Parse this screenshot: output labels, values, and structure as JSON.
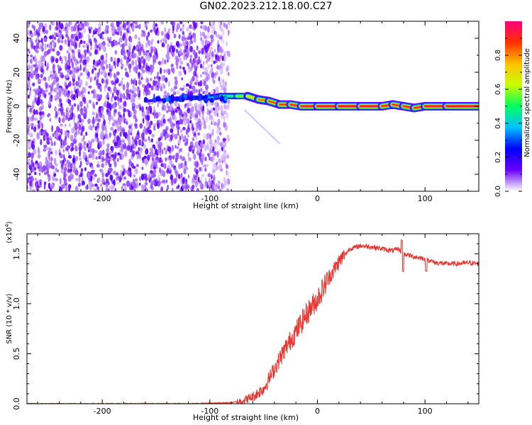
{
  "figure": {
    "title": "GN02.2023.212.18.00.C27"
  },
  "chart_data": [
    {
      "type": "heatmap",
      "title": "",
      "xlabel": "Height of straight line (km)",
      "ylabel": "Frequency (Hz)",
      "xlim": [
        -270,
        150
      ],
      "ylim": [
        -50,
        50
      ],
      "x_ticks": [
        -200,
        -100,
        0,
        100
      ],
      "x_tick_labels": [
        "-200",
        "-100",
        "0",
        "100"
      ],
      "y_ticks": [
        -40,
        -20,
        0,
        20,
        40
      ],
      "y_tick_labels": [
        "-40",
        "-20",
        "0",
        "20",
        "40"
      ],
      "grid": false,
      "colorbar": {
        "label": "Normalized spectral amplitude",
        "range": [
          0,
          1
        ],
        "ticks": [
          0.0,
          0.2,
          0.4,
          0.6,
          0.8
        ],
        "tick_labels": [
          "0.0",
          "0.2",
          "0.4",
          "0.6",
          "0.8"
        ],
        "colormap": [
          "#ffffff",
          "#6a00ff",
          "#0000ff",
          "#00c0ff",
          "#00ff60",
          "#c8ff00",
          "#ffc000",
          "#ff3000",
          "#ff0080"
        ]
      },
      "noise_region_x": [
        -270,
        -88
      ],
      "ridge": {
        "x": [
          -160,
          -140,
          -120,
          -100,
          -90,
          -75,
          -65,
          -55,
          -45,
          -35,
          -25,
          -15,
          0,
          20,
          40,
          60,
          70,
          80,
          90,
          100,
          120,
          150
        ],
        "freq": [
          3,
          4,
          5,
          5,
          6,
          6,
          6,
          4,
          3,
          1,
          1,
          0,
          0,
          0,
          0,
          0,
          1,
          0,
          -1,
          0,
          0,
          0
        ],
        "amplitude": [
          0.12,
          0.18,
          0.2,
          0.3,
          0.45,
          0.55,
          0.65,
          0.8,
          0.85,
          0.9,
          0.92,
          0.95,
          0.97,
          0.98,
          0.98,
          0.97,
          0.9,
          0.95,
          0.9,
          0.95,
          0.97,
          0.97
        ]
      }
    },
    {
      "type": "line",
      "title": "",
      "xlabel": "Height of straight line (km)",
      "ylabel": "SNR (10 * v/v)",
      "y_multiplier": "(x10^4)",
      "xlim": [
        -270,
        150
      ],
      "ylim": [
        0,
        1.7
      ],
      "x_ticks": [
        -200,
        -100,
        0,
        100
      ],
      "x_tick_labels": [
        "-200",
        "-100",
        "0",
        "100"
      ],
      "y_ticks": [
        0.0,
        0.5,
        1.0,
        1.5
      ],
      "y_tick_labels": [
        "0.0",
        "0.5",
        "1.0",
        "1.5"
      ],
      "grid": false,
      "series": [
        {
          "color": "#e8322d",
          "x": [
            -270,
            -200,
            -120,
            -80,
            -70,
            -60,
            -50,
            -40,
            -30,
            -20,
            -10,
            0,
            10,
            20,
            30,
            40,
            50,
            60,
            70,
            75,
            80,
            90,
            100,
            110,
            120,
            130,
            140,
            150
          ],
          "y": [
            0.0,
            0.0,
            0.0,
            0.01,
            0.03,
            0.07,
            0.15,
            0.35,
            0.55,
            0.72,
            0.9,
            1.05,
            1.25,
            1.42,
            1.55,
            1.58,
            1.57,
            1.55,
            1.53,
            1.55,
            1.5,
            1.47,
            1.45,
            1.41,
            1.4,
            1.4,
            1.41,
            1.4
          ]
        }
      ]
    }
  ]
}
